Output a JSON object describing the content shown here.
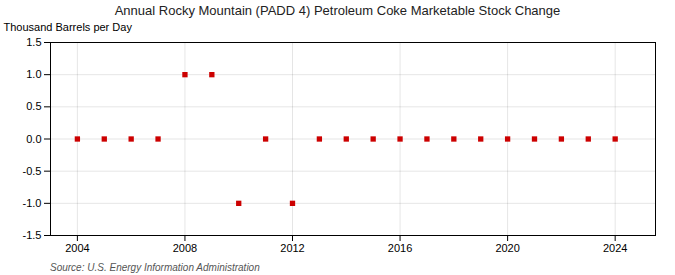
{
  "chart_data": {
    "type": "scatter",
    "title": "Annual Rocky Mountain (PADD 4) Petroleum Coke Marketable Stock Change",
    "ylabel": "Thousand Barrels per Day",
    "source": "Source: U.S. Energy Information Administration",
    "x": [
      2004,
      2005,
      2006,
      2007,
      2008,
      2009,
      2010,
      2011,
      2012,
      2013,
      2014,
      2015,
      2016,
      2017,
      2018,
      2019,
      2020,
      2021,
      2022,
      2023,
      2024
    ],
    "values": [
      0,
      0,
      0,
      0,
      1.0,
      1.0,
      -1.0,
      0,
      -1.0,
      0,
      0,
      0,
      0,
      0,
      0,
      0,
      0,
      0,
      0,
      0,
      0
    ],
    "color": "#cc0000",
    "marker": "square",
    "xlim": [
      2003.0,
      2025.5
    ],
    "xticks": [
      2004,
      2008,
      2012,
      2016,
      2020,
      2024
    ],
    "ylim": [
      -1.5,
      1.5
    ],
    "yticks": [
      -1.5,
      {
        "value": -1.0,
        "label": "-1.0"
      },
      -0.5,
      {
        "value": 0.0,
        "label": "0.0"
      },
      0.5,
      {
        "value": 1.0,
        "label": "1.0"
      },
      1.5
    ],
    "grid": true
  }
}
